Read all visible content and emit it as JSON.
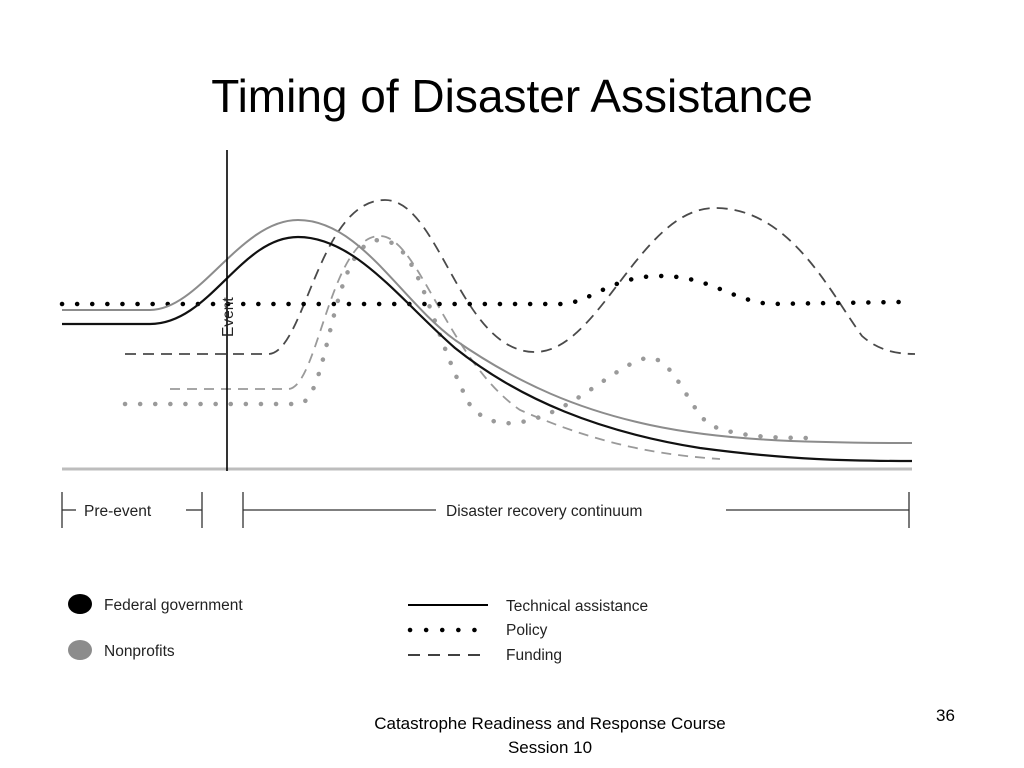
{
  "slide": {
    "title": "Timing of Disaster Assistance",
    "footer_line1": "Catastrophe Readiness and Response Course",
    "footer_line2": "Session 10",
    "page_number": "36"
  },
  "diagram": {
    "event_label": "Event",
    "phases": {
      "pre_event": "Pre-event",
      "recovery": "Disaster recovery continuum"
    },
    "legend": {
      "actors": [
        {
          "label": "Federal government",
          "color": "#000000"
        },
        {
          "label": "Nonprofits",
          "color": "#8c8c8c"
        }
      ],
      "assistance_types": [
        {
          "label": "Technical assistance",
          "style": "solid"
        },
        {
          "label": "Policy",
          "style": "dotted"
        },
        {
          "label": "Funding",
          "style": "dashed"
        }
      ]
    },
    "colors": {
      "federal": "#000000",
      "nonprofit": "#8c8c8c"
    }
  }
}
